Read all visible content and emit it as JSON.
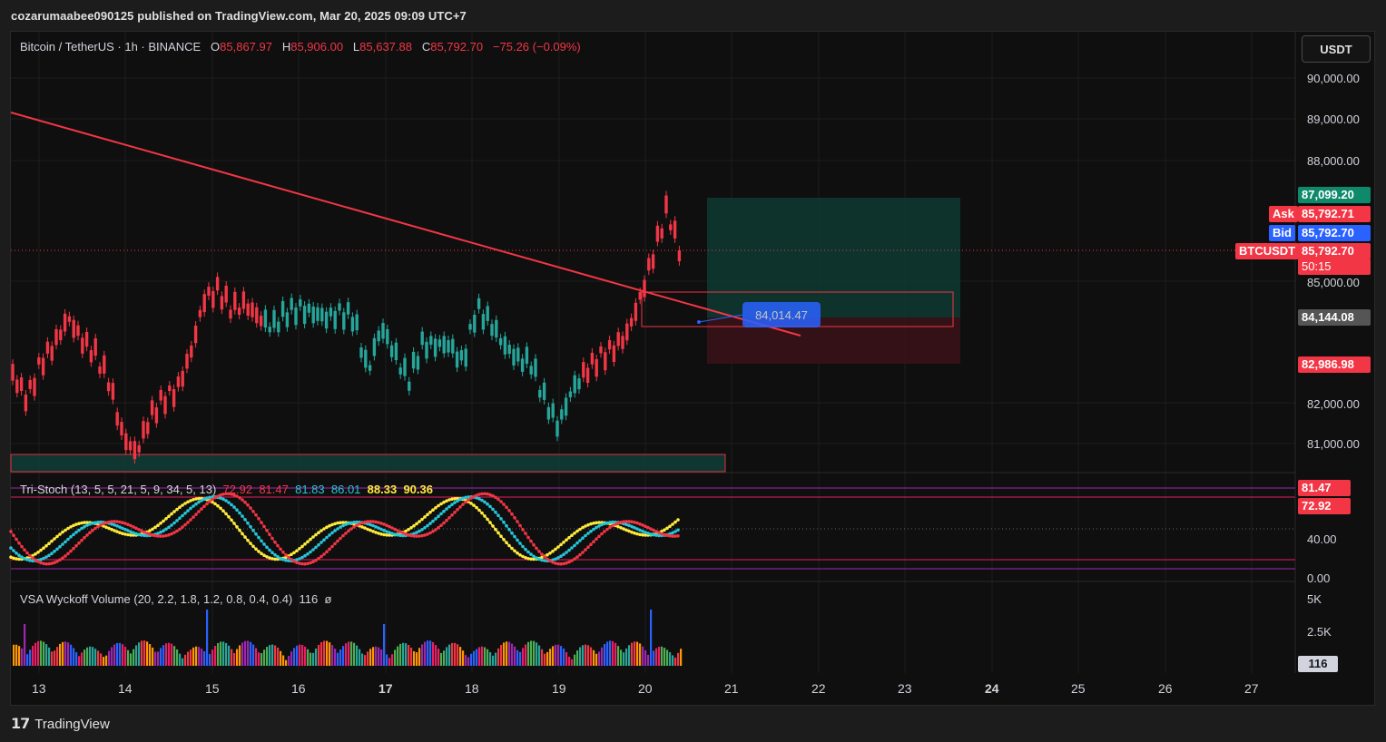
{
  "publisher": "cozarumaabee090125 published on TradingView.com, Mar 20, 2025 09:09 UTC+7",
  "symbol": {
    "name": "Bitcoin / TetherUS · 1h · BINANCE",
    "open_label": "O",
    "open": "85,867.97",
    "high_label": "H",
    "high": "85,906.00",
    "low_label": "L",
    "low": "85,637.88",
    "close_label": "C",
    "close": "85,792.70",
    "change": "−75.26 (−0.09%)"
  },
  "currency_button": "USDT",
  "price_axis": [
    "90,000.00",
    "89,000.00",
    "88,000.00",
    "85,000.00",
    "82,000.00",
    "81,000.00"
  ],
  "tags": {
    "target": "87,099.20",
    "ask_label": "Ask",
    "ask": "85,792.71",
    "bid_label": "Bid",
    "bid": "85,792.70",
    "symbol_label": "BTCUSDT",
    "last": "85,792.70",
    "countdown": "50:15",
    "entry": "84,144.08",
    "stop": "82,986.98"
  },
  "box_label": "84,014.47",
  "tri_stoch": {
    "label": "Tri-Stoch (13, 5, 5, 21, 5, 9, 34, 5, 13)",
    "values": [
      "72.92",
      "81.47",
      "81.83",
      "86.01",
      "88.33",
      "90.36"
    ],
    "axis": [
      "40.00",
      "0.00"
    ],
    "tag_a": "81.47",
    "tag_b": "72.92"
  },
  "vsa": {
    "label": "VSA Wyckoff Volume (20, 2.2, 1.8, 1.2, 0.8, 0.4, 0.4)",
    "value": "116",
    "extra": "ø",
    "axis": [
      "5K",
      "2.5K"
    ],
    "tag": "116"
  },
  "time_axis": [
    {
      "label": "13",
      "bold": false
    },
    {
      "label": "14",
      "bold": false
    },
    {
      "label": "15",
      "bold": false
    },
    {
      "label": "16",
      "bold": false
    },
    {
      "label": "17",
      "bold": true
    },
    {
      "label": "18",
      "bold": false
    },
    {
      "label": "19",
      "bold": false
    },
    {
      "label": "20",
      "bold": false
    },
    {
      "label": "21",
      "bold": false
    },
    {
      "label": "22",
      "bold": false
    },
    {
      "label": "23",
      "bold": false
    },
    {
      "label": "24",
      "bold": true
    },
    {
      "label": "25",
      "bold": false
    },
    {
      "label": "26",
      "bold": false
    },
    {
      "label": "27",
      "bold": false
    }
  ],
  "brand": "TradingView",
  "colors": {
    "up": "#26a69a",
    "down": "#f23645",
    "trendline": "#f23645",
    "target_zone": "#0f3b34",
    "stop_zone": "#3b1218",
    "ask": "#f23645",
    "bid": "#2962ff"
  }
}
